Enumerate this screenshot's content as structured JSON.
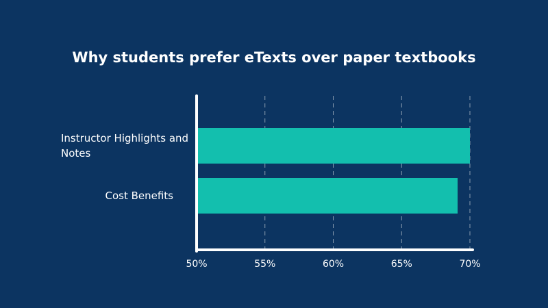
{
  "chart_data": {
    "type": "bar",
    "orientation": "horizontal",
    "title": "Why students prefer eTexts over paper textbooks",
    "categories": [
      "Instructor Highlights and Notes",
      "Cost Benefits"
    ],
    "values": [
      70,
      69.1
    ],
    "color": "#13bfae",
    "xlim": [
      50,
      70
    ],
    "xticks": [
      {
        "value": 50,
        "label": "50%"
      },
      {
        "value": 55,
        "label": "55%"
      },
      {
        "value": 60,
        "label": "60%"
      },
      {
        "value": 65,
        "label": "65%"
      },
      {
        "value": 70,
        "label": "70%"
      }
    ],
    "grid": true
  }
}
